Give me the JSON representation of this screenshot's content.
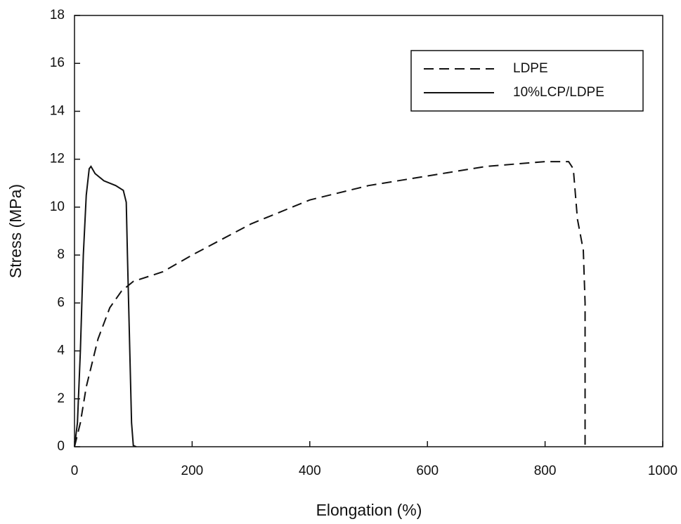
{
  "chart_data": {
    "type": "line",
    "xlabel": "Elongation (%)",
    "ylabel": "Stress (MPa)",
    "xlim": [
      0,
      1000
    ],
    "xticks": [
      0,
      200,
      400,
      600,
      800,
      1000
    ],
    "ylim": [
      0,
      18
    ],
    "yticks": [
      0,
      2,
      4,
      6,
      8,
      10,
      12,
      14,
      16,
      18
    ],
    "grid": false,
    "legend": "upper right",
    "series": [
      {
        "name": "LDPE",
        "color": "#111111",
        "linestyle": "dashed",
        "x": [
          0,
          10,
          20,
          40,
          60,
          80,
          100,
          150,
          200,
          300,
          400,
          500,
          600,
          700,
          800,
          840,
          848,
          855,
          865,
          868,
          868
        ],
        "values": [
          0,
          1,
          2.5,
          4.5,
          5.8,
          6.5,
          6.9,
          7.3,
          8,
          9.3,
          10.3,
          10.9,
          11.3,
          11.7,
          11.9,
          11.9,
          11.6,
          9.5,
          8.2,
          6,
          0
        ]
      },
      {
        "name": "10%LCP/LDPE",
        "color": "#111111",
        "linestyle": "solid",
        "x": [
          0,
          5,
          10,
          15,
          20,
          25,
          28,
          35,
          50,
          70,
          83,
          88,
          90,
          93,
          97,
          100,
          105
        ],
        "values": [
          0,
          1,
          4,
          8,
          10.5,
          11.6,
          11.7,
          11.4,
          11.1,
          10.9,
          10.7,
          10.2,
          8,
          5,
          1,
          0.05,
          0
        ]
      }
    ]
  }
}
